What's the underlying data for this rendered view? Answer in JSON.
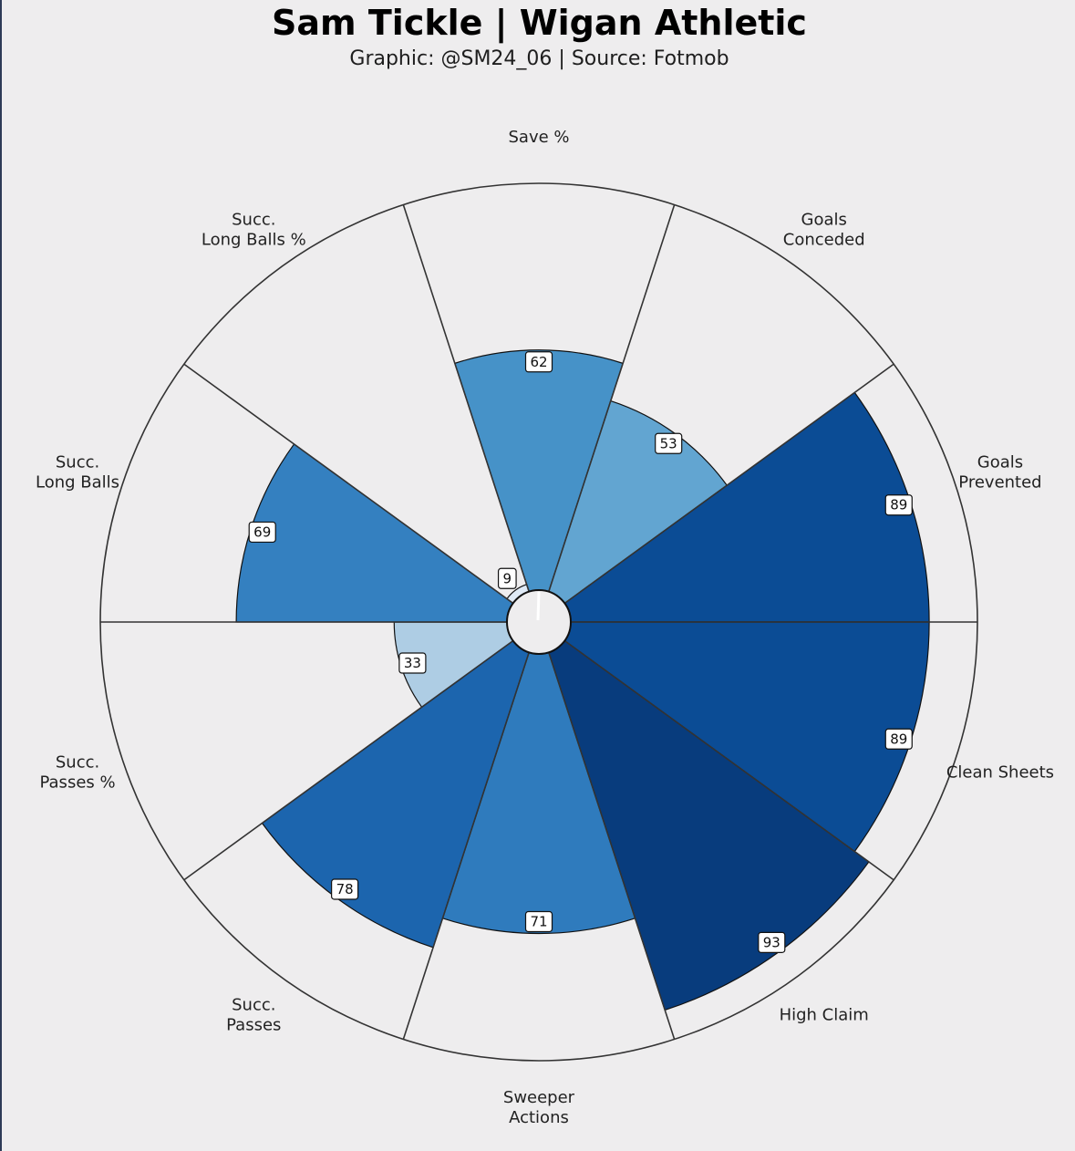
{
  "header": {
    "title": "Sam Tickle | Wigan Athletic",
    "subtitle": "Graphic: @SM24_06 | Source: Fotmob"
  },
  "chart_data": {
    "type": "pizza",
    "title": "Sam Tickle | Wigan Athletic",
    "subtitle": "Graphic: @SM24_06 | Source: Fotmob",
    "range": [
      0,
      100
    ],
    "grid": false,
    "categories": [
      "Save %",
      "Goals Conceded",
      "Goals Prevented",
      "Clean Sheets",
      "High Claim",
      "Sweeper Actions",
      "Succ. Passes",
      "Succ. Passes %",
      "Succ. Long Balls",
      "Succ. Long Balls %"
    ],
    "category_lines": [
      [
        "Save %"
      ],
      [
        "Goals",
        "Conceded"
      ],
      [
        "Goals",
        "Prevented"
      ],
      [
        "Clean Sheets"
      ],
      [
        "High Claim"
      ],
      [
        "Sweeper",
        "Actions"
      ],
      [
        "Succ.",
        "Passes"
      ],
      [
        "Succ.",
        "Passes %"
      ],
      [
        "Succ.",
        "Long Balls"
      ],
      [
        "Succ.",
        "Long Balls %"
      ]
    ],
    "values": [
      62,
      53,
      89,
      89,
      93,
      71,
      78,
      33,
      69,
      9
    ],
    "colors": [
      "#4692c8",
      "#62a5d1",
      "#0b4c95",
      "#0b4c95",
      "#083c7d",
      "#2f7bbd",
      "#1c65ae",
      "#aecde4",
      "#3480c0",
      "#dfeaf6"
    ]
  }
}
